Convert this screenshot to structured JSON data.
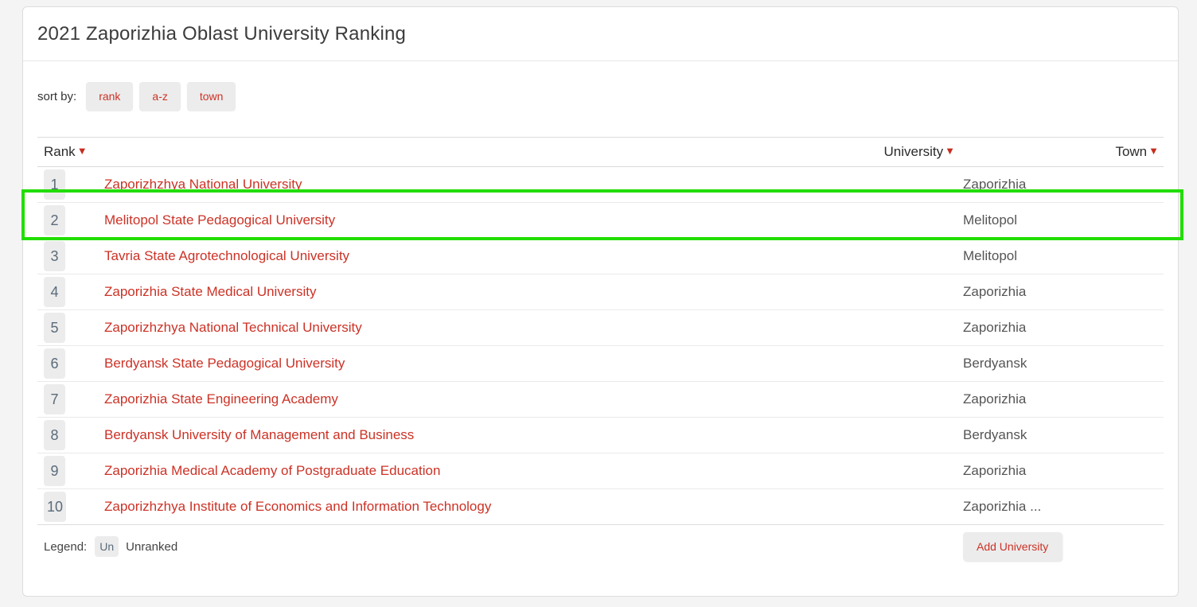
{
  "header": {
    "title": "2021 Zaporizhia Oblast University Ranking"
  },
  "sort": {
    "label": "sort by:",
    "buttons": [
      {
        "label": "rank"
      },
      {
        "label": "a-z"
      },
      {
        "label": "town"
      }
    ]
  },
  "table": {
    "columns": [
      {
        "label": "Rank",
        "sort_icon": "▼"
      },
      {
        "label": "University",
        "sort_icon": "▼"
      },
      {
        "label": "Town",
        "sort_icon": "▼"
      }
    ],
    "rows": [
      {
        "rank": "1",
        "university": "Zaporizhzhya National University",
        "town": "Zaporizhia"
      },
      {
        "rank": "2",
        "university": "Melitopol State Pedagogical University",
        "town": "Melitopol",
        "highlighted": true
      },
      {
        "rank": "3",
        "university": "Tavria State Agrotechnological University",
        "town": "Melitopol"
      },
      {
        "rank": "4",
        "university": "Zaporizhia State Medical University",
        "town": "Zaporizhia"
      },
      {
        "rank": "5",
        "university": "Zaporizhzhya National Technical University",
        "town": "Zaporizhia"
      },
      {
        "rank": "6",
        "university": "Berdyansk State Pedagogical University",
        "town": "Berdyansk"
      },
      {
        "rank": "7",
        "university": "Zaporizhia State Engineering Academy",
        "town": "Zaporizhia"
      },
      {
        "rank": "8",
        "university": "Berdyansk University of Management and Business",
        "town": "Berdyansk"
      },
      {
        "rank": "9",
        "university": "Zaporizhia Medical Academy of Postgraduate Education",
        "town": "Zaporizhia"
      },
      {
        "rank": "10",
        "university": "Zaporizhzhya Institute of Economics and Information Technology",
        "town": "Zaporizhia ..."
      }
    ]
  },
  "legend": {
    "label": "Legend:",
    "badge": "Un",
    "text": "Unranked"
  },
  "actions": {
    "add_university_label": "Add University"
  },
  "highlight": {
    "row_rank": "2",
    "color": "#22dd00"
  },
  "colors": {
    "accent_red": "#cc3226",
    "badge_bg": "#ececec",
    "page_bg": "#f4f4f4"
  }
}
